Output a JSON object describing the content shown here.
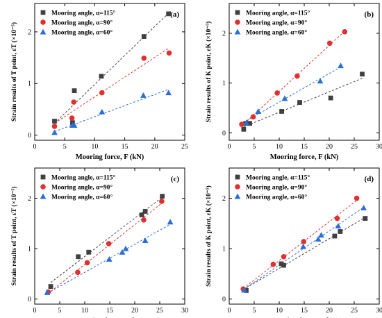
{
  "chart_data": [
    {
      "type": "scatter",
      "panel_label": "(a)",
      "xlabel": "Mooring force, F (kN)",
      "ylabel": "Strain results of T point, εT (×10⁻⁵)",
      "xlim": [
        0,
        25
      ],
      "ylim": [
        -0.1,
        2.55
      ],
      "xticks": [
        0,
        5,
        10,
        15,
        20,
        25
      ],
      "yticks": [
        0,
        1,
        2
      ],
      "series": [
        {
          "name": "Mooring angle, α=115°",
          "marker": "square",
          "color": "#404040",
          "x": [
            3.3,
            6.3,
            6.6,
            11.1,
            18.2,
            22.3
          ],
          "y": [
            0.27,
            0.24,
            0.86,
            1.14,
            1.91,
            2.35
          ]
        },
        {
          "name": "Mooring angle, α=90°",
          "marker": "circle",
          "color": "#e03030",
          "x": [
            3.3,
            6.2,
            6.5,
            11.2,
            18.2,
            22.4
          ],
          "y": [
            0.17,
            0.33,
            0.64,
            0.82,
            1.49,
            1.59
          ]
        },
        {
          "name": "Mooring angle, α=60°",
          "marker": "triangle",
          "color": "#2a6fd6",
          "x": [
            3.3,
            6.3,
            6.6,
            11.2,
            18.1,
            22.3
          ],
          "y": [
            0.05,
            0.19,
            0.19,
            0.45,
            0.77,
            0.82
          ]
        }
      ],
      "legend_position": "top-left"
    },
    {
      "type": "scatter",
      "panel_label": "(b)",
      "xlabel": "Mooring force, F (kN)",
      "ylabel": "Strain results of K point, εK (×10⁻⁵)",
      "xlim": [
        0,
        30
      ],
      "ylim": [
        -0.15,
        2.6
      ],
      "xticks": [
        0,
        5,
        10,
        15,
        20,
        25,
        30
      ],
      "yticks": [
        0,
        1,
        2
      ],
      "series": [
        {
          "name": "Mooring angle, α=115°",
          "marker": "square",
          "color": "#404040",
          "x": [
            2.9,
            3.3,
            4.1,
            10.5,
            14.1,
            20.3,
            26.6
          ],
          "y": [
            0.07,
            0.19,
            0.19,
            0.43,
            0.61,
            0.7,
            1.18
          ]
        },
        {
          "name": "Mooring angle, α=90°",
          "marker": "circle",
          "color": "#e03030",
          "x": [
            2.5,
            4.8,
            9.6,
            13.6,
            20.1,
            23.1
          ],
          "y": [
            0.17,
            0.32,
            0.8,
            1.14,
            1.8,
            2.03
          ]
        },
        {
          "name": "Mooring angle, α=60°",
          "marker": "triangle",
          "color": "#2a6fd6",
          "x": [
            3.4,
            5.8,
            11.1,
            18.2,
            22.3
          ],
          "y": [
            0.2,
            0.43,
            0.69,
            1.04,
            1.35
          ]
        }
      ],
      "legend_position": "top-left"
    },
    {
      "type": "scatter",
      "panel_label": "(c)",
      "xlabel": "Mooring force, F (kN)",
      "ylabel": "Strain results of T point, εT (×10⁻⁵)",
      "xlim": [
        0,
        30
      ],
      "ylim": [
        -0.1,
        2.6
      ],
      "xticks": [
        0,
        5,
        10,
        15,
        20,
        25,
        30
      ],
      "yticks": [
        0,
        1,
        2
      ],
      "series": [
        {
          "name": "Mooring angle, α=115°",
          "marker": "square",
          "color": "#404040",
          "x": [
            3.2,
            8.7,
            10.8,
            21.4,
            22.1,
            25.5
          ],
          "y": [
            0.25,
            0.84,
            0.93,
            1.67,
            1.74,
            2.04
          ]
        },
        {
          "name": "Mooring angle, α=90°",
          "marker": "circle",
          "color": "#e03030",
          "x": [
            2.7,
            8.6,
            10.5,
            14.8,
            21.8,
            25.4
          ],
          "y": [
            0.14,
            0.53,
            0.72,
            1.1,
            1.57,
            1.94
          ]
        },
        {
          "name": "Mooring angle, α=60°",
          "marker": "triangle",
          "color": "#2a6fd6",
          "x": [
            2.5,
            14.9,
            17.5,
            18.2,
            22.1,
            27.1
          ],
          "y": [
            0.13,
            0.79,
            0.93,
            1.0,
            1.16,
            1.53
          ]
        }
      ],
      "legend_position": "top-left"
    },
    {
      "type": "scatter",
      "panel_label": "(d)",
      "xlabel": "Mooring force, F (kN)",
      "ylabel": "Strain results of K point, εK (×10⁻⁵)",
      "xlim": [
        0,
        30
      ],
      "ylim": [
        -0.1,
        2.6
      ],
      "xticks": [
        0,
        5,
        10,
        15,
        20,
        25,
        30
      ],
      "yticks": [
        0,
        1,
        2
      ],
      "series": [
        {
          "name": "Mooring angle, α=115°",
          "marker": "square",
          "color": "#404040",
          "x": [
            3.4,
            10.4,
            10.9,
            21.1,
            22.2,
            27.2
          ],
          "y": [
            0.17,
            0.7,
            0.67,
            1.25,
            1.34,
            1.6
          ]
        },
        {
          "name": "Mooring angle, α=90°",
          "marker": "circle",
          "color": "#e03030",
          "x": [
            2.8,
            8.8,
            10.9,
            14.9,
            21.6,
            25.5
          ],
          "y": [
            0.2,
            0.69,
            0.84,
            1.14,
            1.6,
            2.0
          ]
        },
        {
          "name": "Mooring angle, α=60°",
          "marker": "triangle",
          "color": "#2a6fd6",
          "x": [
            3.0,
            14.8,
            17.8,
            18.4,
            21.8,
            26.9
          ],
          "y": [
            0.18,
            1.04,
            1.19,
            1.27,
            1.45,
            1.81
          ]
        }
      ],
      "legend_position": "top-left"
    }
  ]
}
